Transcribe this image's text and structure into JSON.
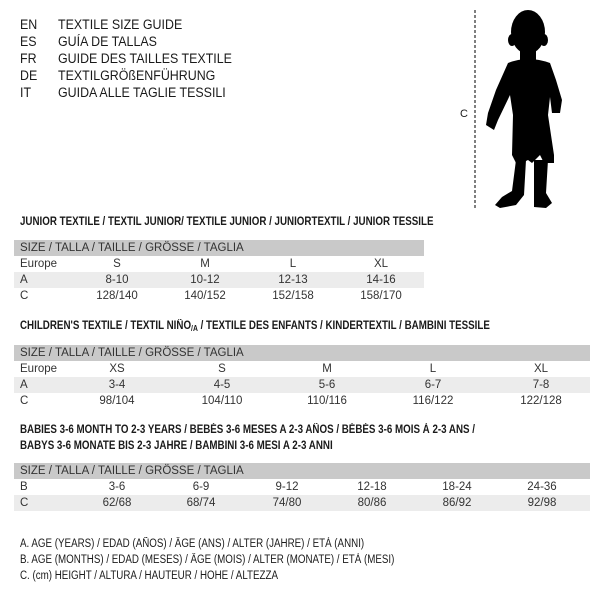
{
  "languages": [
    {
      "code": "EN",
      "text": "TEXTILE SIZE GUIDE"
    },
    {
      "code": "ES",
      "text": "GUÍA DE TALLAS"
    },
    {
      "code": "FR",
      "text": "GUIDE DES TAILLES TEXTILE"
    },
    {
      "code": "DE",
      "text": "TEXTILGRÖßENFÜHRUNG"
    },
    {
      "code": "IT",
      "text": "GUIDA ALLE TAGLIE TESSILI"
    }
  ],
  "figure": {
    "measure_label": "C",
    "icon": "child-silhouette"
  },
  "junior": {
    "title": "JUNIOR TEXTILE / TEXTIL JUNIOR/ TEXTILE JUNIOR / JUNIORTEXTIL / JUNIOR TESSILE",
    "header": "SIZE / TALLA / TAILLE / GRÖSSE / TAGLIA",
    "rows": [
      {
        "label": "Europe",
        "cells": [
          "S",
          "M",
          "L",
          "XL"
        ]
      },
      {
        "label": "A",
        "cells": [
          "8-10",
          "10-12",
          "12-13",
          "14-16"
        ]
      },
      {
        "label": "C",
        "cells": [
          "128/140",
          "140/152",
          "152/158",
          "158/170"
        ]
      }
    ]
  },
  "children": {
    "title_pre": "CHILDREN'S TEXTILE / TEXTIL NIÑO",
    "title_sub": "/A",
    "title_post": " / TEXTILE DES ENFANTS / KINDERTEXTIL / BAMBINI TESSILE",
    "header": "SIZE / TALLA / TAILLE / GRÖSSE / TAGLIA",
    "rows": [
      {
        "label": "Europe",
        "cells": [
          "XS",
          "S",
          "M",
          "L",
          "XL"
        ]
      },
      {
        "label": "A",
        "cells": [
          "3-4",
          "4-5",
          "5-6",
          "6-7",
          "7-8"
        ]
      },
      {
        "label": "C",
        "cells": [
          "98/104",
          "104/110",
          "110/116",
          "116/122",
          "122/128"
        ]
      }
    ]
  },
  "babies": {
    "title_line1": "BABIES 3-6 MONTH TO 2-3 YEARS / BEBÉS 3-6 MESES A 2-3 AÑOS / BÉBÉS 3-6 MOIS À 2-3 ANS /",
    "title_line2": "BABYS 3-6 MONATE BIS 2-3 JAHRE / BAMBINI 3-6 MESI A 2-3 ANNI",
    "header": "SIZE / TALLA / TAILLE / GRÖSSE / TAGLIA",
    "rows": [
      {
        "label": "B",
        "cells": [
          "3-6",
          "6-9",
          "9-12",
          "12-18",
          "18-24",
          "24-36"
        ]
      },
      {
        "label": "C",
        "cells": [
          "62/68",
          "68/74",
          "74/80",
          "80/86",
          "86/92",
          "92/98"
        ]
      }
    ]
  },
  "legend": [
    "A. AGE (YEARS) / EDAD (AÑOS) / ÂGE (ANS) / ALTER (JAHRE) / ETÀ (ANNI)",
    "B. AGE (MONTHS) / EDAD (MESES) / ÂGE (MOIS) / ALTER (MONATE) / ETÀ (MESI)",
    "C. (cm) HEIGHT / ALTURA / HAUTEUR / HÖHE / ALTEZZA"
  ]
}
